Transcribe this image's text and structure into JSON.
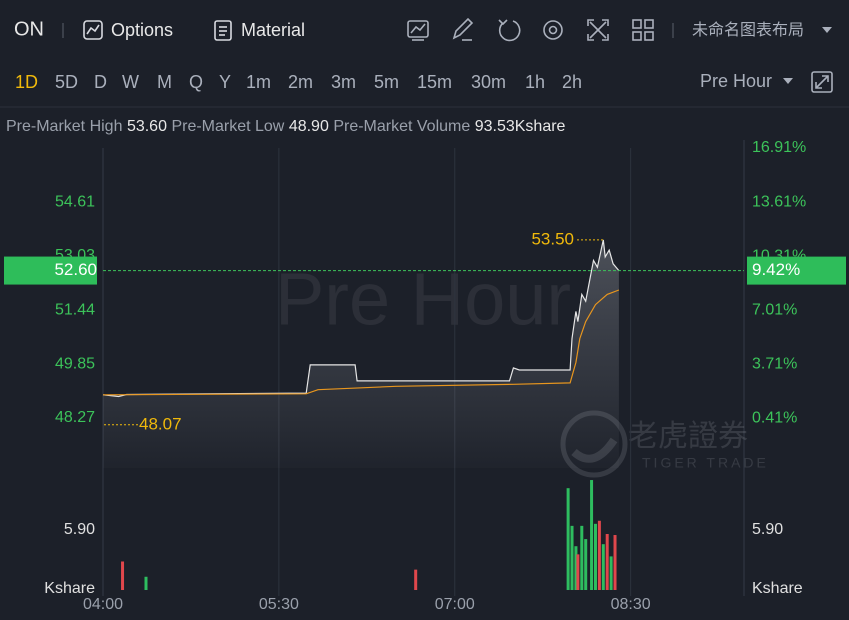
{
  "toolbar": {
    "symbol": "ON",
    "options": "Options",
    "material": "Material",
    "layout": "未命名图表布局"
  },
  "periods": [
    "1D",
    "5D",
    "D",
    "W",
    "M",
    "Q",
    "Y",
    "1m",
    "2m",
    "3m",
    "5m",
    "15m",
    "30m",
    "1h",
    "2h"
  ],
  "session": "Pre Hour",
  "stats": {
    "high_label": "Pre-Market High",
    "high": "53.60",
    "low_label": "Pre-Market Low",
    "low": "48.90",
    "volume_label": "Pre-Market Volume",
    "volume": "93.53Kshare"
  },
  "logo": {
    "name": "老虎證券",
    "brand": "TIGER TRADE"
  },
  "chart_data": {
    "type": "line",
    "watermark": "Pre Hour",
    "xlim": [
      "04:00",
      "09:28"
    ],
    "xticks": [
      "04:00",
      "05:30",
      "07:00",
      "08:30"
    ],
    "ylim": [
      46.8,
      56.7
    ],
    "yticks": [
      54.61,
      53.03,
      51.44,
      49.85,
      48.27
    ],
    "y2lim": [
      -2.64,
      17.95
    ],
    "y2ticks": [
      {
        "value": 16.91,
        "label": "16.91%"
      },
      {
        "value": 13.61,
        "label": "13.61%"
      },
      {
        "value": 10.31,
        "label": "10.31%"
      },
      {
        "value": 7.01,
        "label": "7.01%"
      },
      {
        "value": 3.71,
        "label": "3.71%"
      },
      {
        "value": 0.41,
        "label": "0.41%"
      }
    ],
    "series": [
      {
        "color": "#e6e6e6",
        "x": [
          "04:00",
          "04:08",
          "04:12",
          "05:44",
          "05:46",
          "06:09",
          "06:10",
          "07:28",
          "07:30",
          "07:33",
          "07:59",
          "08:00",
          "08:02",
          "08:03",
          "08:05",
          "08:07",
          "08:09",
          "08:11",
          "08:13",
          "08:16",
          "08:17",
          "08:19",
          "08:21",
          "08:24"
        ],
        "values": [
          48.95,
          48.9,
          48.96,
          49.0,
          49.83,
          49.83,
          49.36,
          49.36,
          49.74,
          49.68,
          49.68,
          50.6,
          51.4,
          51.1,
          51.9,
          51.7,
          52.3,
          52.9,
          52.7,
          53.5,
          53.0,
          53.2,
          52.8,
          52.6
        ]
      },
      {
        "color": "#e8961e",
        "x": [
          "04:00",
          "05:44",
          "05:50",
          "06:30",
          "07:30",
          "07:59",
          "08:02",
          "08:04",
          "08:07",
          "08:12",
          "08:18",
          "08:24"
        ],
        "values": [
          48.95,
          48.98,
          49.1,
          49.2,
          49.26,
          49.3,
          49.9,
          50.6,
          51.1,
          51.6,
          51.9,
          52.03
        ]
      }
    ],
    "last_price": {
      "value": 52.6,
      "label": "52.60"
    },
    "last_change": {
      "value": 9.42,
      "label": "9.42%"
    },
    "high_marker": {
      "value": 53.5,
      "label": "53.50"
    },
    "prev_close": 48.07,
    "volume": {
      "unit": "Kshare",
      "ylim": [
        0,
        11
      ],
      "yticks": [
        {
          "value": 5.9,
          "label": "5.90"
        }
      ],
      "x": [
        "04:10",
        "04:22",
        "06:40",
        "07:58",
        "08:00",
        "08:02",
        "08:03",
        "08:05",
        "08:07",
        "08:10",
        "08:12",
        "08:14",
        "08:16",
        "08:18",
        "08:20",
        "08:22"
      ],
      "values": [
        2.8,
        1.3,
        2.0,
        10.0,
        6.3,
        4.3,
        3.5,
        6.3,
        5.0,
        10.8,
        6.5,
        6.8,
        4.5,
        5.5,
        3.3,
        5.4
      ],
      "colors": [
        "#e0474c",
        "#2ebd5f",
        "#e0474c",
        "#2ebd5f",
        "#2ebd5f",
        "#2ebd5f",
        "#e0474c",
        "#2ebd5f",
        "#2ebd5f",
        "#2ebd5f",
        "#2ebd5f",
        "#e0474c",
        "#2ebd5f",
        "#e0474c",
        "#2ebd5f",
        "#e0474c"
      ]
    }
  }
}
